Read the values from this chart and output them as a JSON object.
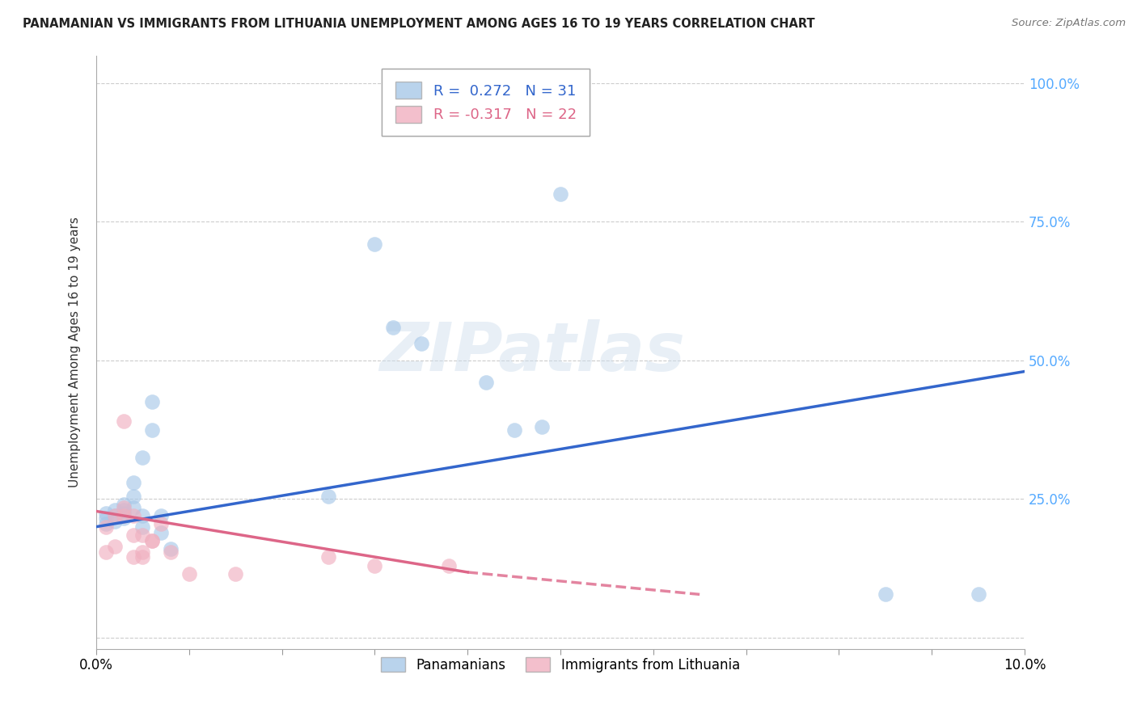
{
  "title": "PANAMANIAN VS IMMIGRANTS FROM LITHUANIA UNEMPLOYMENT AMONG AGES 16 TO 19 YEARS CORRELATION CHART",
  "source": "Source: ZipAtlas.com",
  "ylabel": "Unemployment Among Ages 16 to 19 years",
  "xlim": [
    0.0,
    0.1
  ],
  "ylim": [
    -0.02,
    1.05
  ],
  "ytick_vals": [
    0.0,
    0.25,
    0.5,
    0.75,
    1.0
  ],
  "ytick_right_labels": [
    "",
    "25.0%",
    "50.0%",
    "75.0%",
    "100.0%"
  ],
  "xtick_vals": [
    0.0,
    0.01,
    0.02,
    0.03,
    0.04,
    0.05,
    0.06,
    0.07,
    0.08,
    0.09,
    0.1
  ],
  "xtick_labels": [
    "0.0%",
    "",
    "",
    "",
    "",
    "",
    "",
    "",
    "",
    "",
    "10.0%"
  ],
  "blue_R": 0.272,
  "blue_N": 31,
  "pink_R": -0.317,
  "pink_N": 22,
  "blue_color": "#a8c8e8",
  "pink_color": "#f0b0c0",
  "blue_line_color": "#3366cc",
  "pink_line_color": "#dd6688",
  "watermark_text": "ZIPatlas",
  "blue_scatter_x": [
    0.001,
    0.001,
    0.001,
    0.002,
    0.002,
    0.002,
    0.003,
    0.003,
    0.003,
    0.003,
    0.004,
    0.004,
    0.004,
    0.005,
    0.005,
    0.005,
    0.006,
    0.006,
    0.007,
    0.007,
    0.008,
    0.025,
    0.03,
    0.032,
    0.035,
    0.042,
    0.045,
    0.048,
    0.05,
    0.085,
    0.095
  ],
  "blue_scatter_y": [
    0.215,
    0.225,
    0.205,
    0.22,
    0.23,
    0.21,
    0.225,
    0.23,
    0.215,
    0.24,
    0.235,
    0.28,
    0.255,
    0.22,
    0.2,
    0.325,
    0.425,
    0.375,
    0.22,
    0.19,
    0.16,
    0.255,
    0.71,
    0.56,
    0.53,
    0.46,
    0.375,
    0.38,
    0.8,
    0.078,
    0.078
  ],
  "pink_scatter_x": [
    0.001,
    0.001,
    0.002,
    0.002,
    0.003,
    0.003,
    0.003,
    0.004,
    0.004,
    0.004,
    0.005,
    0.005,
    0.005,
    0.006,
    0.006,
    0.007,
    0.008,
    0.01,
    0.015,
    0.025,
    0.03,
    0.038
  ],
  "pink_scatter_y": [
    0.2,
    0.155,
    0.22,
    0.165,
    0.22,
    0.235,
    0.39,
    0.22,
    0.185,
    0.145,
    0.185,
    0.155,
    0.145,
    0.175,
    0.175,
    0.205,
    0.155,
    0.115,
    0.115,
    0.145,
    0.13,
    0.13
  ],
  "blue_line_x_start": 0.0,
  "blue_line_x_end": 0.1,
  "pink_line_x_solid_start": 0.0,
  "pink_line_x_solid_end": 0.04,
  "pink_line_x_dash_start": 0.04,
  "pink_line_x_dash_end": 0.065,
  "background": "#ffffff",
  "grid_color": "#cccccc",
  "right_axis_color": "#55aaff"
}
